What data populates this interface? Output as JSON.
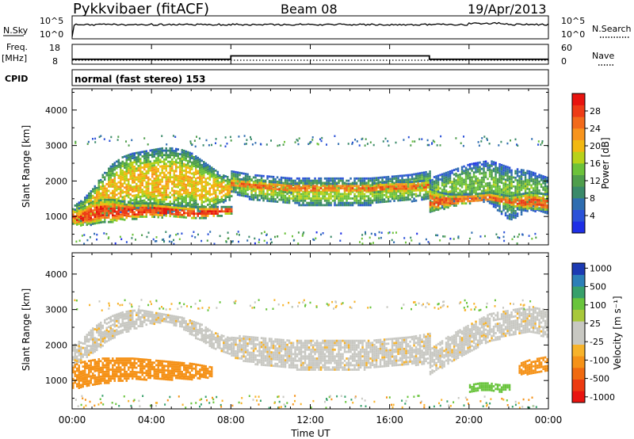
{
  "header": {
    "title": "Pykkvibaer (fitACF)",
    "beam": "Beam 08",
    "date": "19/Apr/2013"
  },
  "noise_panel": {
    "left_label": "N.Sky",
    "right_label": "N.Search",
    "left_ticks": [
      "10^5",
      "10^0"
    ],
    "right_ticks": [
      "10^5",
      "10^0"
    ]
  },
  "freq_panel": {
    "left_label_1": "Freq.",
    "left_label_2": "[MHz]",
    "right_label": "Nave",
    "left_ticks": [
      "18",
      "8"
    ],
    "right_ticks": [
      "60",
      "0"
    ],
    "nave_dotted_level": 12,
    "freq_steps": [
      {
        "start": 0.0,
        "end": 8.0,
        "value": 10.5
      },
      {
        "start": 8.0,
        "end": 18.0,
        "value": 12.2
      },
      {
        "start": 18.0,
        "end": 24.0,
        "value": 10.5
      }
    ]
  },
  "cpid": {
    "label": "CPID",
    "text": "normal (fast stereo) 153"
  },
  "x_axis": {
    "label": "Time UT",
    "ticks": [
      "00:00",
      "04:00",
      "08:00",
      "12:00",
      "16:00",
      "20:00",
      "00:00"
    ],
    "range": [
      0,
      24
    ]
  },
  "chart_data": [
    {
      "type": "heatmap",
      "name": "power",
      "xlabel": "Time UT",
      "ylabel": "Slant Range [km]",
      "ylim": [
        200,
        4600
      ],
      "yticks": [
        1000,
        2000,
        3000,
        4000
      ],
      "colorbar": {
        "label": "Power [dB]",
        "ticks": [
          "4",
          "8",
          "12",
          "16",
          "20",
          "24",
          "28"
        ],
        "range": [
          0,
          32
        ],
        "colors": [
          "#1e2fe6",
          "#2b52d8",
          "#2f6db0",
          "#3a8a6a",
          "#4f9e4c",
          "#6cc23a",
          "#b8d21a",
          "#f2b812",
          "#f7941d",
          "#f26a1b",
          "#ee3b16",
          "#e8140f"
        ]
      },
      "bands": [
        {
          "t": [
            0.0,
            0.5,
            1.0,
            1.5,
            2.0,
            2.5,
            3.0,
            3.5,
            4.0,
            4.5,
            5.0,
            5.5,
            6.0,
            6.5,
            7.0,
            7.5,
            8.0
          ],
          "lower": [
            800,
            850,
            900,
            1000,
            1100,
            1150,
            1200,
            1250,
            1150,
            1050,
            1100,
            1200,
            1200,
            1100,
            1200,
            1400,
            1500
          ],
          "upper": [
            1300,
            1500,
            1800,
            2200,
            2500,
            2700,
            2800,
            2850,
            2900,
            2950,
            2950,
            2900,
            2800,
            2600,
            2400,
            2200,
            2100
          ],
          "power": 20
        },
        {
          "t": [
            0.0,
            0.5,
            1.0,
            1.5,
            2.0,
            2.5,
            3.0,
            4.0,
            5.0,
            6.0,
            7.0,
            8.0
          ],
          "lower": [
            800,
            750,
            800,
            850,
            850,
            900,
            950,
            1000,
            1000,
            950,
            1000,
            1100
          ],
          "upper": [
            1200,
            1300,
            1450,
            1500,
            1500,
            1450,
            1400,
            1400,
            1350,
            1300,
            1300,
            1300
          ],
          "power": 28
        },
        {
          "t": [
            8.0,
            9.0,
            10.0,
            11.0,
            12.0,
            13.0,
            14.0,
            15.0,
            16.0,
            17.0,
            18.0
          ],
          "lower": [
            1700,
            1500,
            1400,
            1350,
            1300,
            1300,
            1300,
            1350,
            1400,
            1450,
            1500
          ],
          "upper": [
            2300,
            2200,
            2150,
            2100,
            2100,
            2100,
            2100,
            2100,
            2150,
            2200,
            2300
          ],
          "power": 16
        },
        {
          "t": [
            8.0,
            9.0,
            10.0,
            11.0,
            12.0,
            13.0,
            14.0,
            15.0,
            16.0,
            17.0,
            18.0
          ],
          "lower": [
            1850,
            1750,
            1700,
            1700,
            1700,
            1700,
            1700,
            1700,
            1700,
            1700,
            1750
          ],
          "upper": [
            2100,
            2050,
            2000,
            1950,
            1950,
            1950,
            1950,
            1950,
            2000,
            2000,
            2050
          ],
          "power": 26
        },
        {
          "t": [
            18.0,
            19.0,
            20.0,
            21.0,
            22.0,
            23.0,
            24.0
          ],
          "lower": [
            1100,
            1300,
            1500,
            1400,
            900,
            1200,
            1100
          ],
          "upper": [
            2100,
            2300,
            2500,
            2600,
            2400,
            2300,
            2100
          ],
          "power": 14
        },
        {
          "t": [
            18.0,
            18.5,
            19.0,
            20.0,
            21.0,
            22.0,
            23.0,
            24.0
          ],
          "lower": [
            1150,
            1200,
            1300,
            1400,
            1450,
            1300,
            1200,
            1150
          ],
          "upper": [
            1800,
            1700,
            1650,
            1650,
            1700,
            1600,
            1700,
            1650
          ],
          "power": 26
        }
      ]
    },
    {
      "type": "heatmap",
      "name": "velocity",
      "xlabel": "Time UT",
      "ylabel": "Slant Range [km]",
      "ylim": [
        200,
        4600
      ],
      "yticks": [
        1000,
        2000,
        3000,
        4000
      ],
      "colorbar": {
        "label": "Velocity [m s⁻¹]",
        "ticks": [
          "1000",
          "500",
          "100",
          "25",
          "-25",
          "-100",
          "-500",
          "-1000"
        ],
        "colors": [
          "#1c3ab3",
          "#2c7fb8",
          "#37a06b",
          "#69c43c",
          "#a8c83a",
          "#c8c8c2",
          "#c8c8c2",
          "#f7b32b",
          "#f59218",
          "#f06a10",
          "#ec3a10",
          "#e81410"
        ]
      },
      "bands": [
        {
          "t": [
            0.0,
            0.5,
            1.0,
            1.5,
            2.0,
            2.5,
            3.0,
            3.5,
            4.0,
            4.5,
            5.0,
            5.5,
            6.0,
            6.5,
            7.0,
            7.5,
            8.0
          ],
          "lower": [
            1400,
            1600,
            1800,
            2000,
            2200,
            2350,
            2450,
            2550,
            2600,
            2650,
            2600,
            2500,
            2300,
            2100,
            1900,
            1800,
            1700
          ],
          "upper": [
            2000,
            2200,
            2500,
            2700,
            2850,
            2950,
            3000,
            3000,
            2950,
            2900,
            2850,
            2800,
            2700,
            2600,
            2400,
            2300,
            2200
          ],
          "vel": 0
        },
        {
          "t": [
            0.0,
            0.5,
            1.0,
            1.5,
            2.0,
            2.5,
            3.0,
            4.0,
            5.0,
            6.0,
            7.0
          ],
          "lower": [
            800,
            800,
            850,
            900,
            950,
            1000,
            1050,
            1050,
            1050,
            1050,
            1100
          ],
          "upper": [
            1450,
            1550,
            1600,
            1650,
            1650,
            1650,
            1650,
            1600,
            1550,
            1500,
            1400
          ],
          "vel": -200
        },
        {
          "t": [
            8.0,
            9.0,
            10.0,
            11.0,
            12.0,
            13.0,
            14.0,
            15.0,
            16.0,
            17.0,
            18.0
          ],
          "lower": [
            1700,
            1500,
            1400,
            1350,
            1300,
            1300,
            1300,
            1350,
            1400,
            1450,
            1500
          ],
          "upper": [
            2300,
            2250,
            2200,
            2150,
            2150,
            2150,
            2150,
            2150,
            2200,
            2250,
            2350
          ],
          "vel": 0
        },
        {
          "t": [
            18.0,
            19.0,
            20.0,
            21.0,
            22.0,
            23.0,
            24.0
          ],
          "lower": [
            1200,
            1500,
            1800,
            2100,
            2300,
            2400,
            2200
          ],
          "upper": [
            1900,
            2300,
            2600,
            2900,
            3000,
            3100,
            3000
          ],
          "vel": 0
        },
        {
          "t": [
            22.5,
            23.0,
            23.5,
            24.0
          ],
          "lower": [
            1200,
            1200,
            1250,
            1300
          ],
          "upper": [
            1500,
            1600,
            1650,
            1700
          ],
          "vel": -200
        },
        {
          "t": [
            20.0,
            20.5,
            21.0,
            21.5,
            22.0
          ],
          "lower": [
            700,
            700,
            750,
            700,
            750
          ],
          "upper": [
            900,
            950,
            950,
            900,
            900
          ],
          "vel": 120
        }
      ]
    }
  ]
}
